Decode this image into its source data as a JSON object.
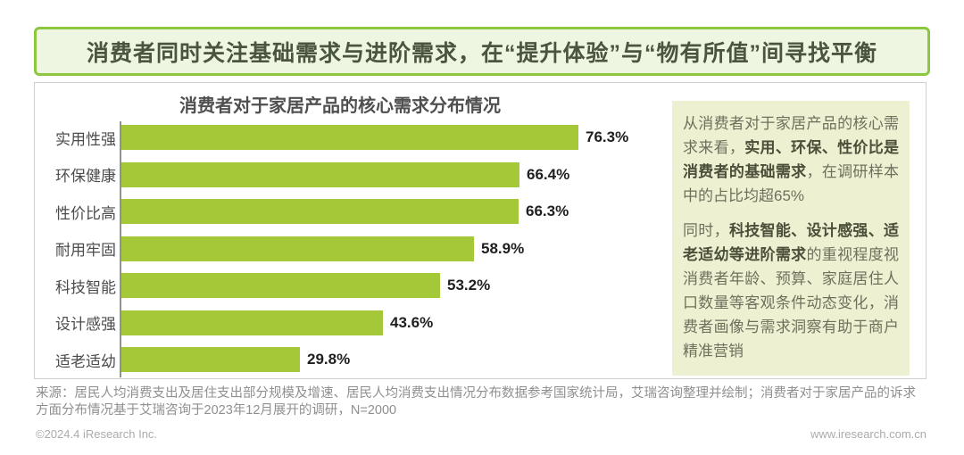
{
  "header": {
    "title": "消费者同时关注基础需求与进阶需求，在“提升体验”与“物有所值”间寻找平衡"
  },
  "chart_data": {
    "type": "bar",
    "orientation": "horizontal",
    "title": "消费者对于家居产品的核心需求分布情况",
    "categories": [
      "实用性强",
      "环保健康",
      "性价比高",
      "耐用牢固",
      "科技智能",
      "设计感强",
      "适老适幼"
    ],
    "values": [
      76.3,
      66.4,
      66.3,
      58.9,
      53.2,
      43.6,
      29.8
    ],
    "unit": "%",
    "xlim": [
      0,
      80
    ],
    "grid": false,
    "value_labels_shown": true,
    "legend": "none"
  },
  "panel": {
    "p1": {
      "pre": "从消费者对于家居产品的核心需求来看，",
      "bold": "实用、环保、性价比是消费者的基础需求",
      "post": "，在调研样本中的占比均超65%"
    },
    "p2": {
      "pre": "同时，",
      "bold": "科技智能、设计感强、适老适幼等进阶需求",
      "post": "的重视程度视消费者年龄、预算、家庭居住人口数量等客观条件动态变化，消费者画像与需求洞察有助于商户精准营销"
    }
  },
  "footer": {
    "source": "来源：居民人均消费支出及居住支出部分规模及增速、居民人均消费支出情况分布数据参考国家统计局，艾瑞咨询整理并绘制；消费者对于家居产品的诉求方面分布情况基于艾瑞咨询于2023年12月展开的调研，N=2000",
    "copyright": "©2024.4 iResearch Inc.",
    "website": "www.iresearch.com.cn"
  },
  "colors": {
    "bar": "#a5c838",
    "header_border": "#8dc63f",
    "header_bg": "#eef6e2",
    "header_text": "#4a5540",
    "panel_bg": "#eef0d2",
    "panel_text": "#6e705c",
    "panel_bold_text": "#4b4e38",
    "axis": "#8f938f"
  }
}
